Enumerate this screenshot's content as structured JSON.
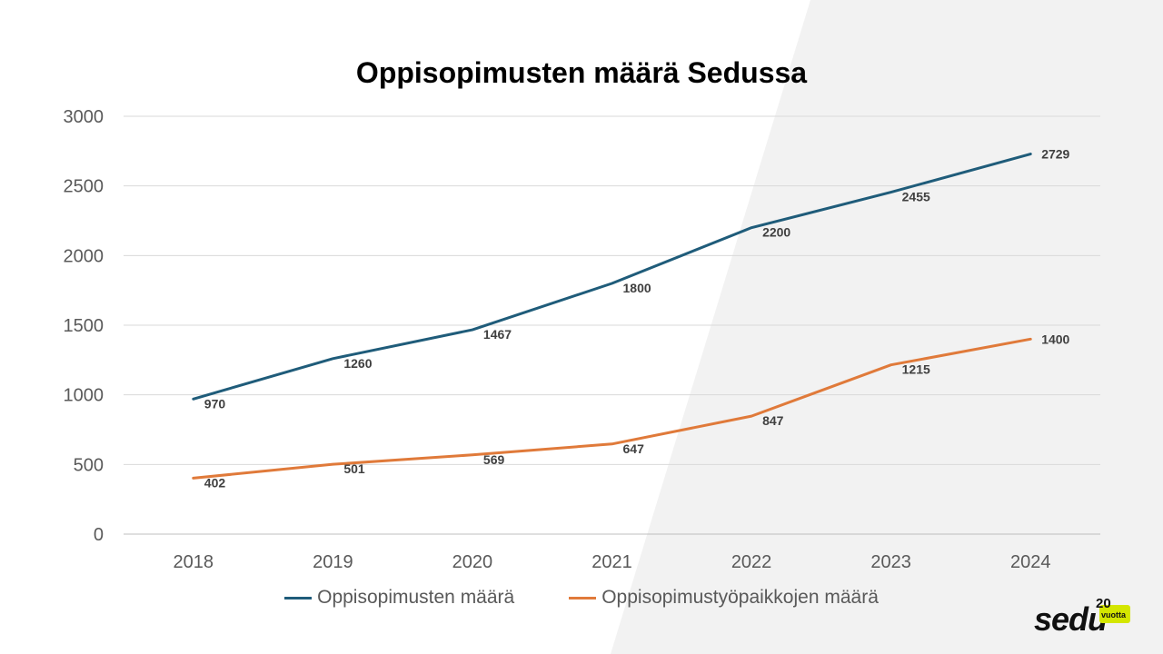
{
  "chart_data": {
    "type": "line",
    "title": "Oppisopimusten määrä Sedussa",
    "xlabel": "",
    "ylabel": "",
    "categories": [
      "2018",
      "2019",
      "2020",
      "2021",
      "2022",
      "2023",
      "2024"
    ],
    "ylim": [
      0,
      3000
    ],
    "yticks": [
      0,
      500,
      1000,
      1500,
      2000,
      2500,
      3000
    ],
    "grid": true,
    "legend_position": "bottom",
    "series": [
      {
        "name": "Oppisopimusten määrä",
        "color": "#1f5c7a",
        "values": [
          970,
          1260,
          1467,
          1800,
          2200,
          2455,
          2729
        ]
      },
      {
        "name": "Oppisopimustyöpaikkojen määrä",
        "color": "#e07a3a",
        "values": [
          402,
          501,
          569,
          647,
          847,
          1215,
          1400
        ]
      }
    ]
  },
  "logo": {
    "wordmark": "sedu",
    "badge_number": "20",
    "badge_text": "vuotta",
    "badge_color": "#d4e600"
  },
  "background_shape_color": "#f2f2f2"
}
